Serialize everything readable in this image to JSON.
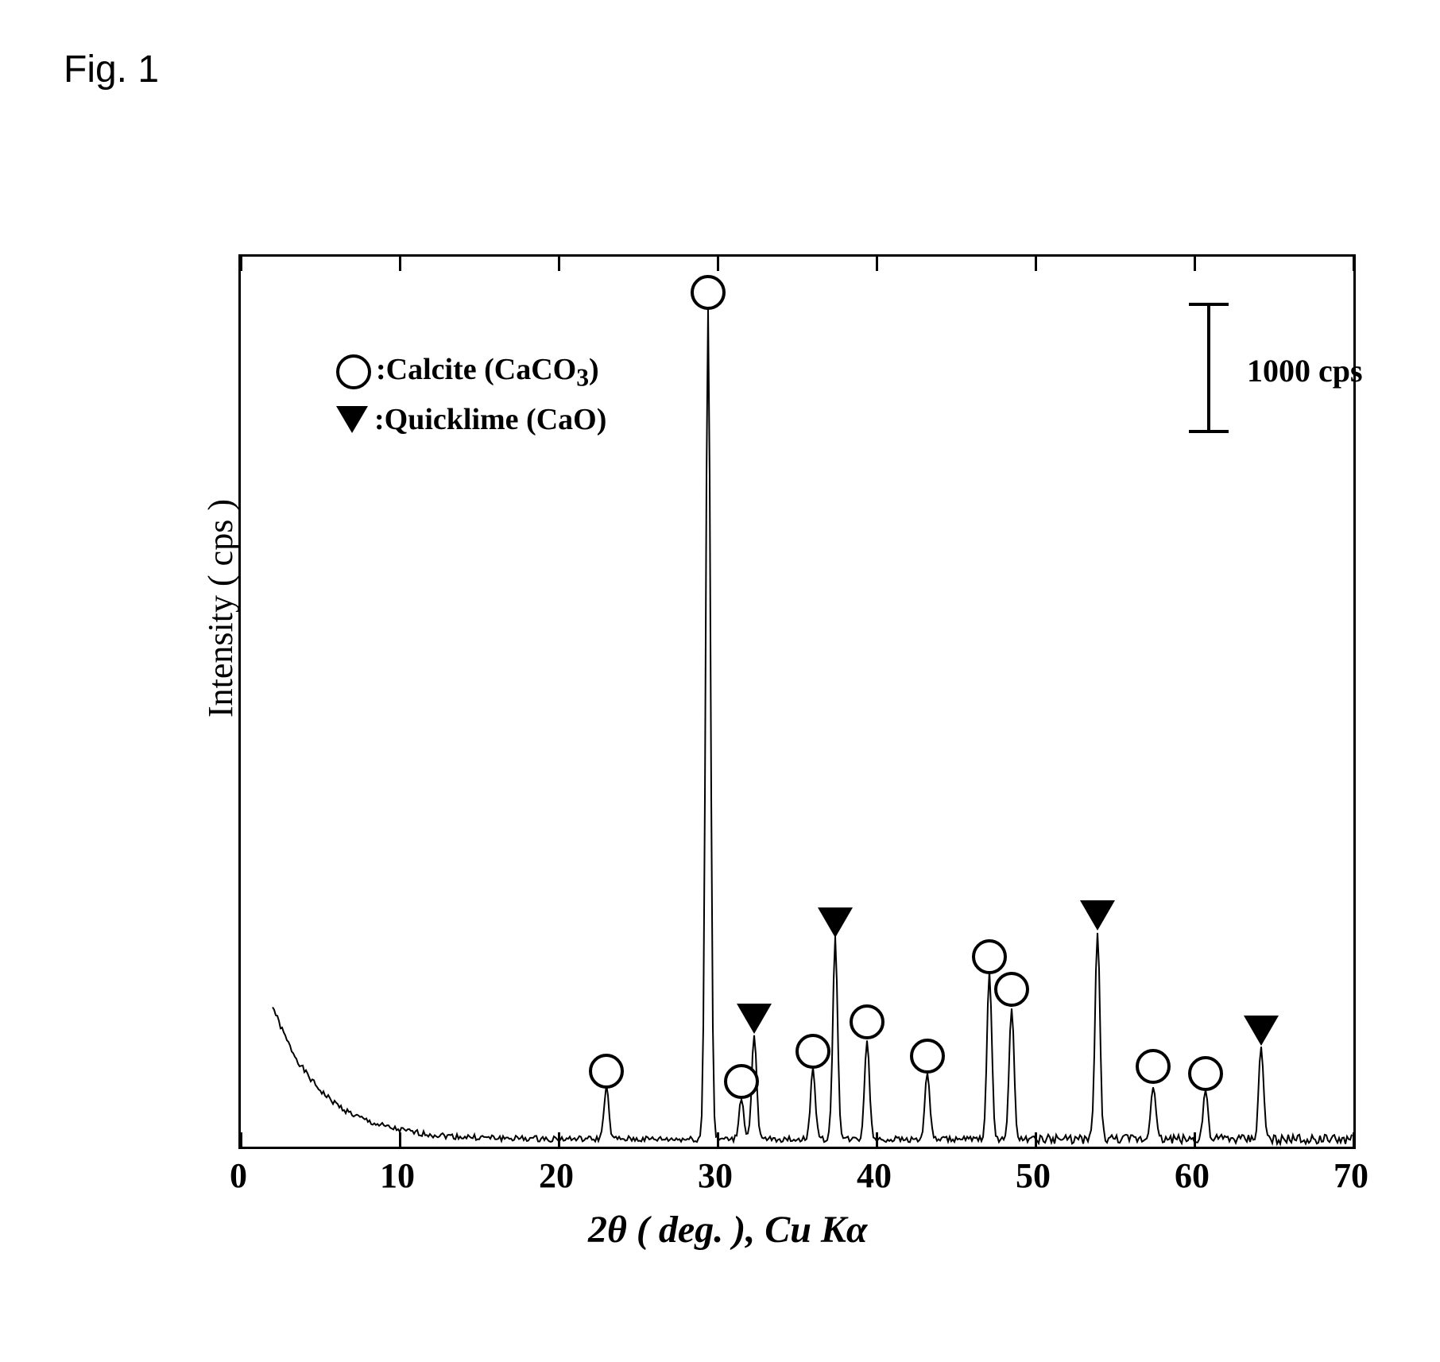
{
  "figure_label": "Fig. 1",
  "chart": {
    "type": "xrd-line",
    "x_axis": {
      "label_parts": [
        "2",
        "θ",
        " ( deg. ),  Cu K",
        "α"
      ],
      "min": 0,
      "max": 70,
      "tick_positions": [
        0,
        10,
        20,
        30,
        40,
        50,
        60,
        70
      ],
      "tick_labels": [
        "0",
        "10",
        "20",
        "30",
        "40",
        "50",
        "60",
        "70"
      ],
      "label_fontsize": 48,
      "tick_fontsize": 44
    },
    "y_axis": {
      "label": "Intensity  ( cps )",
      "label_fontsize": 44,
      "show_tick_labels": false
    },
    "scale_bar": {
      "label": "1000 cps",
      "fontsize": 40
    },
    "legend": {
      "fontsize": 38,
      "items": [
        {
          "symbol": "circle",
          "label_parts": [
            ":Calcite (CaCO",
            "3",
            ")"
          ]
        },
        {
          "symbol": "triangle",
          "label_parts": [
            ":Quicklime (CaO)"
          ]
        }
      ]
    },
    "colors": {
      "background": "#ffffff",
      "axis": "#000000",
      "line": "#000000",
      "marker_stroke": "#000000",
      "marker_fill_circle": "#ffffff",
      "marker_fill_triangle": "#000000"
    },
    "line_width": 2,
    "peaks": [
      {
        "two_theta": 23.0,
        "intensity": 350,
        "phase": "calcite"
      },
      {
        "two_theta": 29.4,
        "intensity": 5600,
        "phase": "calcite"
      },
      {
        "two_theta": 31.5,
        "intensity": 280,
        "phase": "calcite"
      },
      {
        "two_theta": 32.3,
        "intensity": 700,
        "phase": "quicklime"
      },
      {
        "two_theta": 36.0,
        "intensity": 480,
        "phase": "calcite"
      },
      {
        "two_theta": 37.4,
        "intensity": 1350,
        "phase": "quicklime"
      },
      {
        "two_theta": 39.4,
        "intensity": 680,
        "phase": "calcite"
      },
      {
        "two_theta": 43.2,
        "intensity": 450,
        "phase": "calcite"
      },
      {
        "two_theta": 47.1,
        "intensity": 1120,
        "phase": "calcite"
      },
      {
        "two_theta": 48.5,
        "intensity": 900,
        "phase": "calcite"
      },
      {
        "two_theta": 53.9,
        "intensity": 1400,
        "phase": "quicklime"
      },
      {
        "two_theta": 57.4,
        "intensity": 380,
        "phase": "calcite"
      },
      {
        "two_theta": 60.7,
        "intensity": 330,
        "phase": "calcite"
      },
      {
        "two_theta": 64.2,
        "intensity": 620,
        "phase": "quicklime"
      }
    ],
    "baseline_start_intensity": 900,
    "y_display_max": 6000,
    "noise_amplitude": 40
  }
}
